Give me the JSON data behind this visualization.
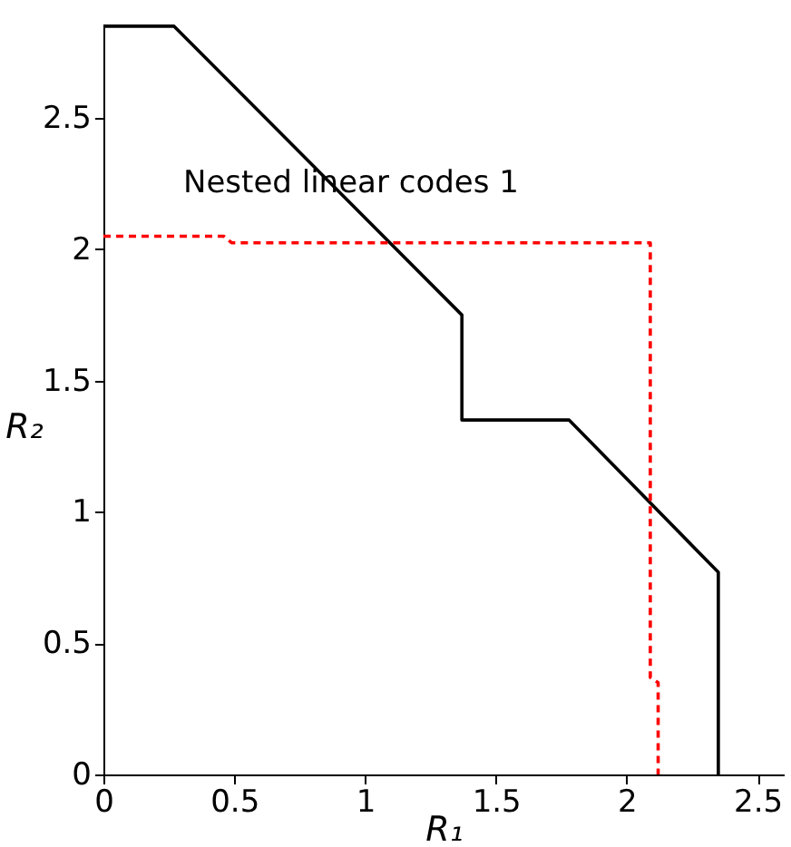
{
  "chart_data": {
    "type": "line",
    "xlabel": "R₁",
    "ylabel": "R₂",
    "annotations": [
      "Nested linear codes 1"
    ],
    "xlim": [
      0,
      2.6
    ],
    "ylim": [
      0,
      2.86
    ],
    "xticks": [
      0,
      0.5,
      1,
      1.5,
      2,
      2.5
    ],
    "yticks": [
      0,
      0.5,
      1,
      1.5,
      2,
      2.5
    ],
    "grid": false,
    "series": [
      {
        "color": "#000000",
        "line_style": "solid",
        "x": [
          0,
          0.27,
          1.37,
          1.37,
          1.78,
          2.35,
          2.35
        ],
        "values": [
          2.85,
          2.85,
          1.75,
          1.35,
          1.35,
          0.77,
          0
        ]
      },
      {
        "color": "#ff0000",
        "line_style": "dashed",
        "x": [
          0,
          0.46,
          0.49,
          2.09,
          2.09,
          2.12,
          2.12
        ],
        "values": [
          2.05,
          2.05,
          2.025,
          2.025,
          0.37,
          0.35,
          0
        ]
      }
    ]
  }
}
